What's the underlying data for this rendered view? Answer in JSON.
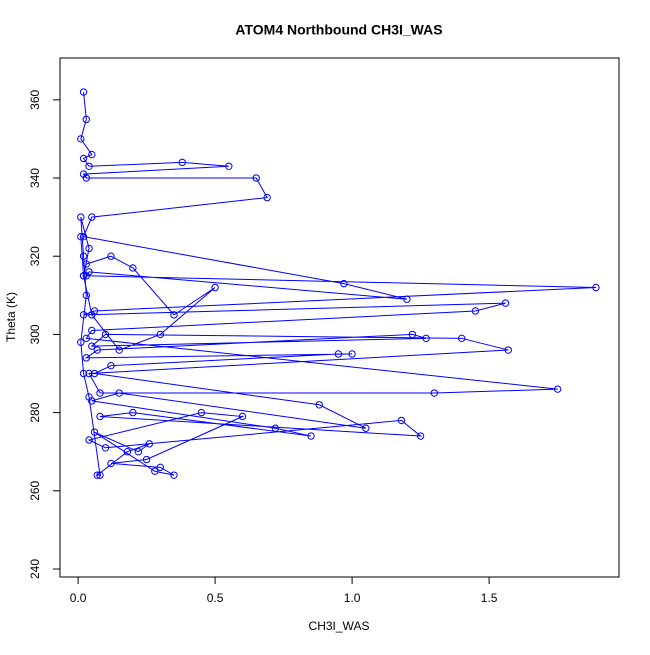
{
  "chart_data": {
    "type": "scatter",
    "connect": true,
    "title": "ATOM4 Northbound CH3I_WAS",
    "x_label": "CH3I_WAS",
    "y_label": "Theta (K)",
    "color": "#0000ff",
    "x": [
      0.02,
      0.03,
      0.01,
      0.05,
      0.02,
      0.04,
      0.38,
      0.55,
      0.02,
      0.03,
      0.65,
      0.69,
      0.05,
      0.02,
      0.97,
      1.2,
      0.04,
      0.03,
      1.89,
      0.06,
      0.02,
      1.56,
      1.45,
      0.05,
      0.03,
      1.75,
      1.3,
      0.08,
      0.04,
      1.57,
      1.4,
      0.1,
      0.05,
      1.27,
      1.22,
      0.07,
      0.03,
      1.0,
      0.95,
      0.12,
      0.06,
      0.88,
      1.05,
      0.15,
      0.05,
      0.72,
      0.85,
      0.2,
      0.08,
      1.25,
      1.18,
      0.1,
      0.04,
      0.45,
      0.6,
      0.25,
      0.12,
      0.3,
      0.35,
      0.28,
      0.06,
      0.22,
      0.26,
      0.18,
      0.07,
      0.08,
      0.04,
      0.02,
      0.01,
      0.03,
      0.02,
      0.01,
      0.04,
      0.02,
      0.03,
      0.12,
      0.2,
      0.35,
      0.5,
      0.3,
      0.15,
      0.05,
      0.02,
      0.01
    ],
    "y": [
      362,
      355,
      350,
      346,
      345,
      343,
      344,
      343,
      341,
      340,
      340,
      335,
      330,
      325,
      313,
      309,
      316,
      315,
      312,
      306,
      305,
      308,
      306,
      301,
      299,
      286,
      285,
      285,
      290,
      296,
      299,
      300,
      297,
      299,
      300,
      296,
      294,
      295,
      295,
      292,
      290,
      282,
      276,
      285,
      283,
      276,
      274,
      280,
      279,
      274,
      278,
      271,
      273,
      280,
      279,
      268,
      267,
      266,
      264,
      265,
      275,
      270,
      272,
      270,
      264,
      264,
      284,
      290,
      298,
      310,
      320,
      330,
      322,
      315,
      318,
      320,
      317,
      305,
      312,
      300,
      296,
      305,
      315,
      325
    ],
    "xlim": [
      -0.066,
      1.974
    ],
    "ylim": [
      237.95,
      370.7
    ],
    "xticks": [
      {
        "value": 0,
        "label": "0.0"
      },
      0.5,
      {
        "value": 1,
        "label": "1.0"
      },
      1.5
    ],
    "yticks": [
      240,
      260,
      280,
      300,
      320,
      340,
      360
    ]
  }
}
